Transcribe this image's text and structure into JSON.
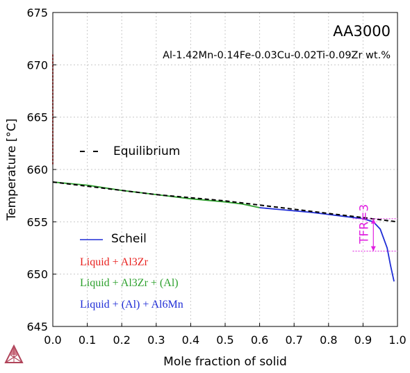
{
  "chart_data": {
    "type": "line",
    "title": "AA3000",
    "subtitle": "Al-1.42Mn-0.14Fe-0.03Cu-0.02Ti-0.09Zr wt.%",
    "xlabel": "Mole fraction of solid",
    "ylabel": "Temperature [°C]",
    "xlim": [
      0.0,
      1.0
    ],
    "ylim": [
      645,
      675
    ],
    "x_ticks": [
      0.0,
      0.1,
      0.2,
      0.3,
      0.4,
      0.5,
      0.6,
      0.7,
      0.8,
      0.9,
      1.0
    ],
    "x_tick_labels": [
      "0.0",
      "0.1",
      "0.2",
      "0.3",
      "0.4",
      "0.5",
      "0.6",
      "0.7",
      "0.8",
      "0.9",
      "1.0"
    ],
    "y_ticks": [
      645,
      650,
      655,
      660,
      665,
      670,
      675
    ],
    "y_tick_labels": [
      "645",
      "650",
      "655",
      "660",
      "665",
      "670",
      "675"
    ],
    "grid": true,
    "legend_line_labels": [
      "Equilibrium",
      "Scheil"
    ],
    "legend_phase_labels": [
      {
        "label": "Liquid + Al3Zr",
        "color": "#e8201e"
      },
      {
        "label": "Liquid + Al3Zr + (Al)",
        "color": "#2ca02c"
      },
      {
        "label": "Liquid + (Al) + Al6Mn",
        "color": "#1f2dd6"
      }
    ],
    "series": [
      {
        "name": "Equilibrium",
        "style": "dashed",
        "color": "#000000",
        "x": [
          0.0,
          0.1,
          0.2,
          0.3,
          0.4,
          0.5,
          0.6,
          0.7,
          0.8,
          0.9,
          1.0
        ],
        "y": [
          658.8,
          658.4,
          658.0,
          657.6,
          657.3,
          657.0,
          656.6,
          656.2,
          655.8,
          655.4,
          655.0
        ]
      },
      {
        "name": "Liquid + Al3Zr",
        "color": "#e8201e",
        "style": "dashed",
        "x": [
          0.0,
          0.0
        ],
        "y": [
          660.5,
          671.0
        ]
      },
      {
        "name": "Liquid + Al3Zr + (Al)",
        "color": "#2ca02c",
        "x": [
          0.0,
          0.1,
          0.2,
          0.3,
          0.4,
          0.5,
          0.55,
          0.6
        ],
        "y": [
          658.8,
          658.5,
          658.0,
          657.6,
          657.2,
          656.9,
          656.7,
          656.35
        ]
      },
      {
        "name": "Liquid + (Al) + Al6Mn",
        "color": "#1f2dd6",
        "x": [
          0.6,
          0.65,
          0.7,
          0.75,
          0.8,
          0.85,
          0.9,
          0.93,
          0.95,
          0.97,
          0.98,
          0.99
        ],
        "y": [
          656.35,
          656.2,
          656.05,
          655.9,
          655.7,
          655.5,
          655.3,
          655.0,
          654.3,
          652.5,
          650.8,
          649.3
        ]
      }
    ],
    "annotation": {
      "label": "TFR=3",
      "color": "#e020e0",
      "x": 0.93,
      "y_top": 655.3,
      "y_bottom": 652.2,
      "ref_x0": 0.87,
      "ref_x1": 1.0
    }
  },
  "logo": {
    "name": "thermo-calc-logo"
  }
}
